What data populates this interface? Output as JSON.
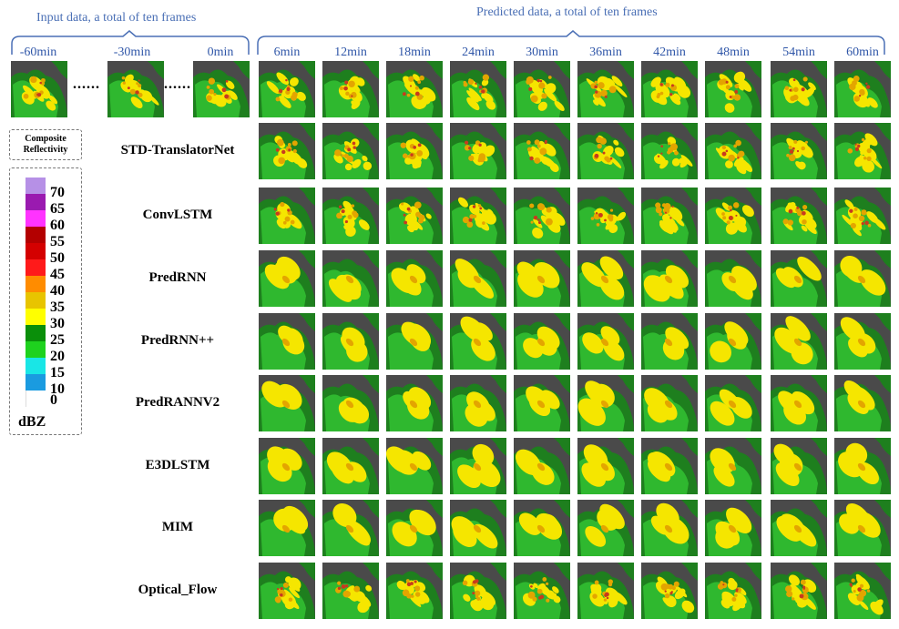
{
  "header": {
    "input_label": "Input data, a total of ten frames",
    "predicted_label": "Predicted data, a total of ten frames"
  },
  "input_times": [
    "-60min",
    "-30min",
    "0min"
  ],
  "ellipsis": "......",
  "predicted_times": [
    "6min",
    "12min",
    "18min",
    "24min",
    "30min",
    "36min",
    "42min",
    "48min",
    "54min",
    "60min"
  ],
  "models": [
    "STD-TranslatorNet",
    "ConvLSTM",
    "PredRNN",
    "PredRNN++",
    "PredRANNV2",
    "E3DLSTM",
    "MIM",
    "Optical_Flow"
  ],
  "legend": {
    "title_line1": "Composite",
    "title_line2": "Reflectivity",
    "unit": "dBZ",
    "ticks": [
      "70",
      "65",
      "60",
      "55",
      "50",
      "45",
      "40",
      "35",
      "30",
      "25",
      "20",
      "15",
      "10",
      "0"
    ],
    "colors": [
      "#b690e6",
      "#9a1ab0",
      "#ff33ff",
      "#b30000",
      "#d40000",
      "#ff1a1a",
      "#ff8c00",
      "#e8c400",
      "#ffff00",
      "#0a8f0a",
      "#1ed21e",
      "#19e6e6",
      "#1a9be0",
      "#ffffff"
    ]
  },
  "palette": {
    "background": "#4a4a4a",
    "green_dark": "#1e7f1e",
    "green": "#2fb82f",
    "yellow": "#f5e600",
    "orange": "#e3a500",
    "red": "#c83a1e",
    "brace": "#4a6fb5"
  }
}
